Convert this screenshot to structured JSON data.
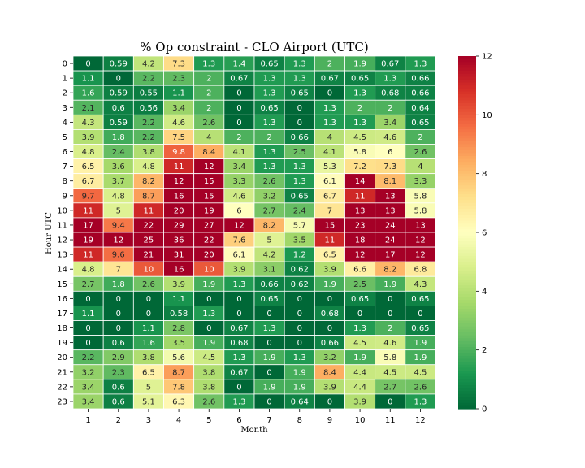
{
  "chart_data": {
    "type": "heatmap",
    "title": "% Op constraint - CLO Airport (UTC)",
    "xlabel": "Month",
    "ylabel": "Hour UTC",
    "x": [
      "1",
      "2",
      "3",
      "4",
      "5",
      "6",
      "7",
      "8",
      "9",
      "10",
      "11",
      "12"
    ],
    "y": [
      "0",
      "1",
      "2",
      "3",
      "4",
      "5",
      "6",
      "7",
      "8",
      "9",
      "10",
      "11",
      "12",
      "13",
      "14",
      "15",
      "16",
      "17",
      "18",
      "19",
      "20",
      "21",
      "22",
      "23"
    ],
    "values": [
      [
        0,
        0.59,
        4.2,
        7.3,
        1.3,
        1.4,
        0.65,
        1.3,
        2,
        1.9,
        0.67,
        1.3
      ],
      [
        1.1,
        0,
        2.2,
        2.3,
        2,
        0.67,
        1.3,
        1.3,
        0.67,
        0.65,
        1.3,
        0.66
      ],
      [
        1.6,
        0.59,
        0.55,
        1.1,
        2,
        0,
        1.3,
        0.65,
        0,
        1.3,
        0.68,
        0.66
      ],
      [
        2.1,
        0.6,
        0.56,
        3.4,
        2,
        0,
        0.65,
        0,
        1.3,
        2,
        2,
        0.64
      ],
      [
        4.3,
        0.59,
        2.2,
        4.6,
        2.6,
        0,
        1.3,
        0,
        1.3,
        1.3,
        3.4,
        0.65
      ],
      [
        3.9,
        1.8,
        2.2,
        7.5,
        4,
        2,
        2,
        0.66,
        4,
        4.5,
        4.6,
        2
      ],
      [
        4.8,
        2.4,
        3.8,
        9.8,
        8.4,
        4.1,
        1.3,
        2.5,
        4.1,
        5.8,
        6,
        2.6
      ],
      [
        6.5,
        3.6,
        4.8,
        11,
        12,
        3.4,
        1.3,
        1.3,
        5.3,
        7.2,
        7.3,
        4
      ],
      [
        6.7,
        3.7,
        8.2,
        12,
        15,
        3.3,
        2.6,
        1.3,
        6.1,
        14,
        8.1,
        3.3
      ],
      [
        9.7,
        4.8,
        8.7,
        16,
        15,
        4.6,
        3.2,
        0.65,
        6.7,
        11,
        13,
        5.8
      ],
      [
        11,
        5,
        11,
        20,
        19,
        6,
        2.7,
        2.4,
        7,
        13,
        13,
        5.8
      ],
      [
        17,
        9.4,
        22,
        29,
        27,
        12,
        8.2,
        5.7,
        15,
        23,
        24,
        13
      ],
      [
        19,
        12,
        25,
        36,
        22,
        7.6,
        5,
        3.5,
        11,
        18,
        24,
        12
      ],
      [
        11,
        9.6,
        21,
        31,
        20,
        6.1,
        4.2,
        1.2,
        6.5,
        12,
        17,
        12
      ],
      [
        4.8,
        7,
        10,
        16,
        10,
        3.9,
        3.1,
        0.62,
        3.9,
        6.6,
        8.2,
        6.8
      ],
      [
        2.7,
        1.8,
        2.6,
        3.9,
        1.9,
        1.3,
        0.66,
        0.62,
        1.9,
        2.5,
        1.9,
        4.3
      ],
      [
        0,
        0,
        0,
        1.1,
        0,
        0,
        0.65,
        0,
        0,
        0.65,
        0,
        0.65
      ],
      [
        1.1,
        0,
        0,
        0.58,
        1.3,
        0,
        0,
        0,
        0.68,
        0,
        0,
        0
      ],
      [
        0,
        0,
        1.1,
        2.8,
        0,
        0.67,
        1.3,
        0,
        0,
        1.3,
        2,
        0.65
      ],
      [
        0,
        0.6,
        1.6,
        3.5,
        1.9,
        0.68,
        0,
        0,
        0.66,
        4.5,
        4.6,
        1.9
      ],
      [
        2.2,
        2.9,
        3.8,
        5.6,
        4.5,
        1.3,
        1.9,
        1.3,
        3.2,
        1.9,
        5.8,
        1.9
      ],
      [
        3.2,
        2.3,
        6.5,
        8.7,
        3.8,
        0.67,
        0,
        1.9,
        8.4,
        4.4,
        4.5,
        4.5
      ],
      [
        3.4,
        0.6,
        5,
        7.8,
        3.8,
        0,
        1.9,
        1.9,
        3.9,
        4.4,
        2.7,
        2.6
      ],
      [
        3.4,
        0.6,
        5.1,
        6.3,
        2.6,
        1.3,
        0,
        0.64,
        0,
        3.9,
        0,
        1.3
      ]
    ],
    "vmin": 0,
    "vmax": 12,
    "colormap": "RdYlGn_r",
    "colorbar_ticks": [
      0,
      2,
      4,
      6,
      8,
      10,
      12
    ],
    "annotated": true,
    "grid": false,
    "legend": "colorbar-right"
  }
}
